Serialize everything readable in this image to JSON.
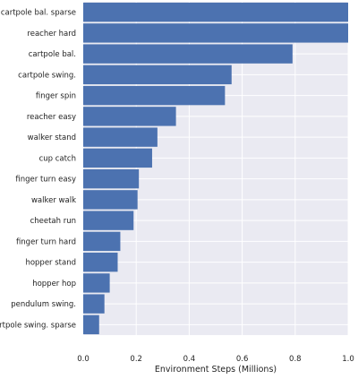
{
  "chart_data": {
    "type": "bar",
    "orientation": "horizontal",
    "categories": [
      "cartpole bal. sparse",
      "reacher hard",
      "cartpole bal.",
      "cartpole swing.",
      "finger spin",
      "reacher easy",
      "walker stand",
      "cup catch",
      "finger turn easy",
      "walker walk",
      "cheetah run",
      "finger turn hard",
      "hopper stand",
      "hopper hop",
      "pendulum swing.",
      "cartpole swing. sparse"
    ],
    "values": [
      1.0,
      1.0,
      0.79,
      0.56,
      0.535,
      0.35,
      0.28,
      0.26,
      0.21,
      0.205,
      0.19,
      0.14,
      0.13,
      0.1,
      0.08,
      0.06
    ],
    "xlabel": "Environment Steps (Millions)",
    "ylabel": "",
    "xlim": [
      0,
      1.0
    ],
    "xticks": [
      "0.0",
      "0.2",
      "0.4",
      "0.6",
      "0.8",
      "1.0"
    ],
    "grid": true,
    "colors": {
      "bar": "#4c72b0",
      "background": "#eaeaf2",
      "grid": "#ffffff"
    }
  }
}
